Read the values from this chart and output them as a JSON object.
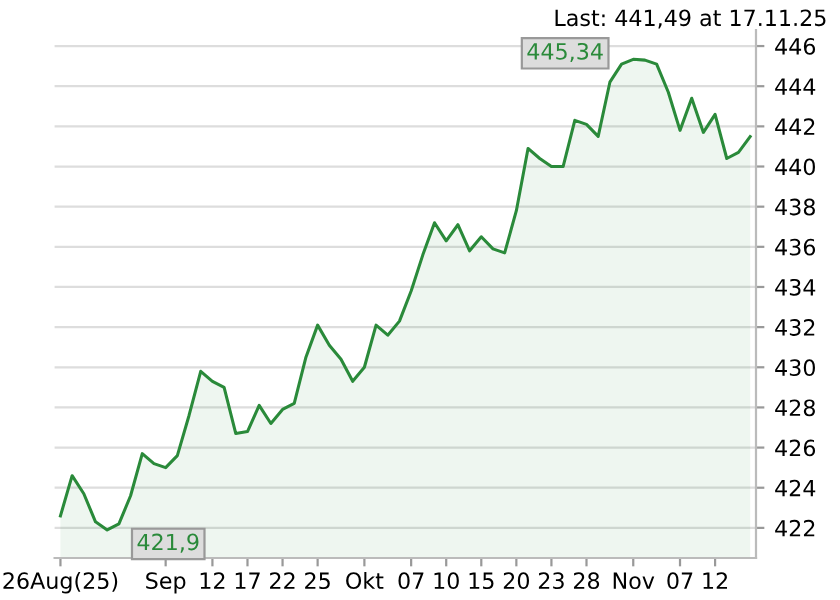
{
  "chart_data": {
    "type": "area",
    "categories": [
      "26Aug(25)",
      null,
      null,
      null,
      null,
      null,
      null,
      null,
      null,
      "Sep",
      null,
      null,
      null,
      "12",
      null,
      null,
      "17",
      null,
      null,
      "22",
      null,
      null,
      "25",
      null,
      null,
      null,
      "Okt",
      null,
      null,
      null,
      "07",
      null,
      null,
      "10",
      null,
      null,
      "15",
      null,
      null,
      "20",
      null,
      null,
      "23",
      null,
      null,
      "28",
      null,
      null,
      null,
      "Nov",
      null,
      null,
      null,
      "07",
      null,
      null,
      "12",
      null,
      null,
      null
    ],
    "series": [
      {
        "color": "#2a8a3a",
        "values": [
          422.6,
          424.6,
          423.7,
          422.3,
          421.9,
          422.2,
          423.6,
          425.7,
          425.2,
          425.0,
          425.6,
          427.6,
          429.8,
          429.3,
          429.0,
          426.7,
          426.8,
          428.1,
          427.2,
          427.9,
          428.2,
          430.5,
          432.1,
          431.1,
          430.4,
          429.3,
          430.0,
          432.1,
          431.6,
          432.3,
          433.8,
          435.6,
          437.2,
          436.3,
          437.1,
          435.8,
          436.5,
          435.9,
          435.7,
          437.8,
          440.9,
          440.4,
          440.0,
          440.0,
          442.3,
          442.1,
          441.5,
          444.2,
          445.1,
          445.34,
          445.3,
          445.1,
          443.7,
          441.8,
          443.4,
          441.7,
          442.6,
          440.4,
          440.7,
          441.49
        ]
      }
    ],
    "ylim": [
      420.5,
      446.8
    ],
    "yticks": [
      422,
      424,
      426,
      428,
      430,
      432,
      434,
      436,
      438,
      440,
      442,
      444,
      446
    ],
    "grid": "y",
    "annotations": [
      "Last: 441,49 at 17.11.25",
      "445,34",
      "421,9"
    ]
  }
}
